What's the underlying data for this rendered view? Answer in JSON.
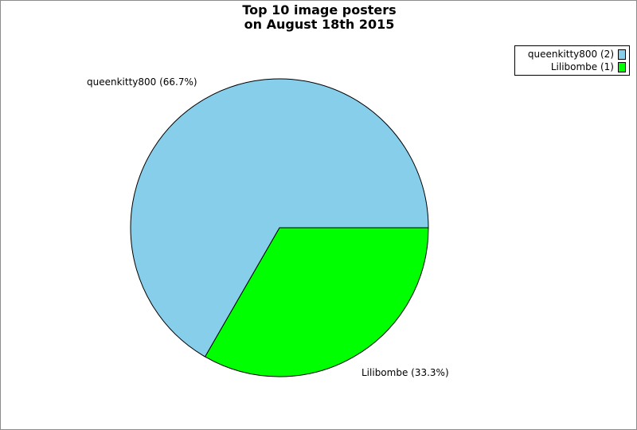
{
  "chart_data": {
    "type": "pie",
    "title": [
      "Top 10 image posters",
      "on August 18th 2015"
    ],
    "slices": [
      {
        "name": "queenkitty800",
        "value": 2,
        "percent_label": "66.7%",
        "label": "queenkitty800 (66.7%)",
        "legend_label": "queenkitty800 (2)",
        "color": "#87ceeb"
      },
      {
        "name": "Lilibombe",
        "value": 1,
        "percent_label": "33.3%",
        "label": "Lilibombe (33.3%)",
        "legend_label": "Lilibombe (1)",
        "color": "#00ff00"
      }
    ],
    "legend_position": "top-right"
  }
}
